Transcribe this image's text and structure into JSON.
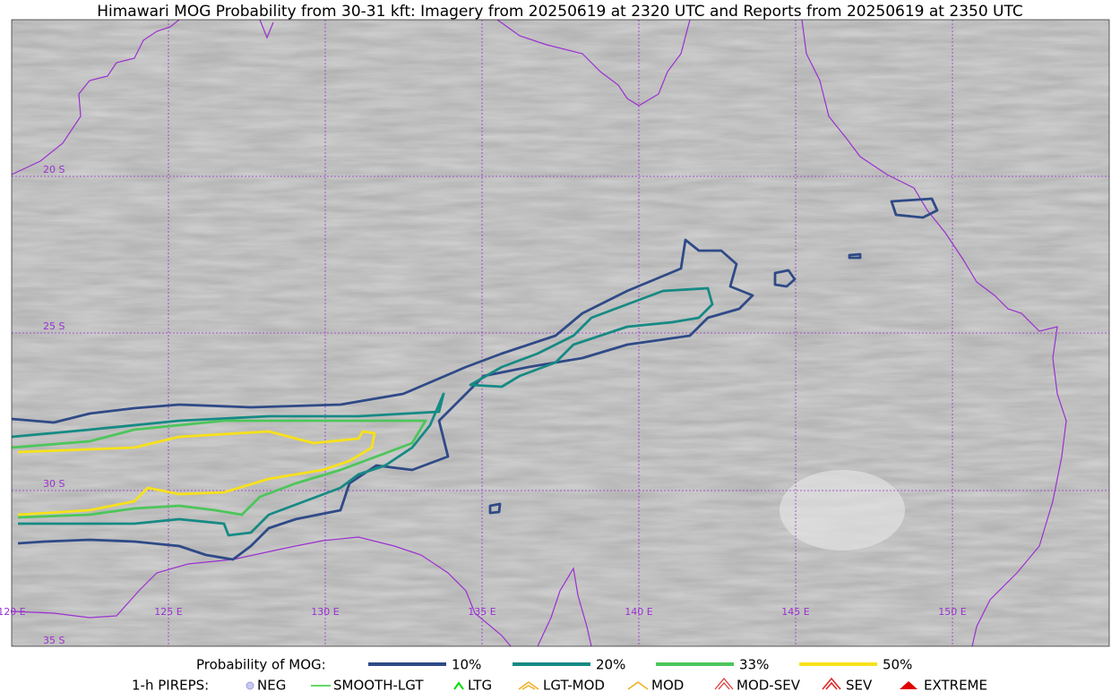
{
  "title": "Himawari MOG Probability from 30-31 kft: Imagery from 20250619 at 2320 UTC and Reports from 20250619 at 2350 UTC",
  "map": {
    "lat_labels": [
      "20 S",
      "25 S",
      "30 S",
      "35 S"
    ],
    "lon_labels": [
      "120 E",
      "125 E",
      "130 E",
      "135 E",
      "140 E",
      "145 E",
      "150 E"
    ]
  },
  "legend": {
    "probability": {
      "label": "Probability of MOG:",
      "items": [
        {
          "label": "10%",
          "color": "#2f4a87"
        },
        {
          "label": "20%",
          "color": "#168a84"
        },
        {
          "label": "33%",
          "color": "#4cc65a"
        },
        {
          "label": "50%",
          "color": "#f7e11a"
        }
      ]
    },
    "pireps": {
      "label": "1-h PIREPS:",
      "items": [
        "NEG",
        "SMOOTH-LGT",
        "LTG",
        "LGT-MOD",
        "MOD",
        "MOD-SEV",
        "SEV",
        "EXTREME"
      ]
    }
  }
}
